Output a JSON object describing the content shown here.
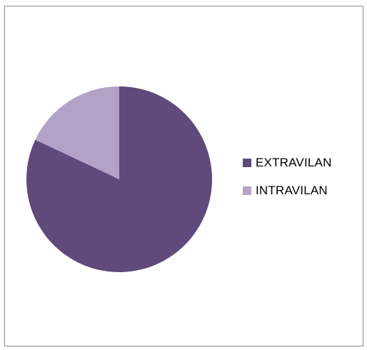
{
  "chart_data": {
    "type": "pie",
    "title": "",
    "categories": [
      "EXTRAVILAN",
      "INTRAVILAN"
    ],
    "values": [
      82,
      18
    ],
    "colors": [
      "#5f4a7b",
      "#b3a2c7"
    ],
    "legend_position": "right",
    "start_angle_deg": 0,
    "direction": "clockwise"
  }
}
